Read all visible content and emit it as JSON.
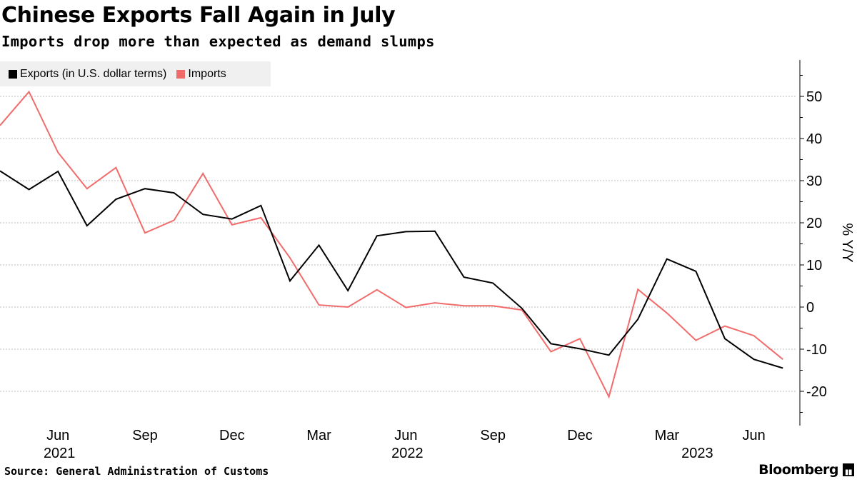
{
  "title": "Chinese Exports Fall Again in July",
  "subtitle": "Imports drop more than expected as demand slumps",
  "source": "Source: General Administration of Customs",
  "brand": "Bloomberg",
  "brand_icon": "bloomberg-terminal-icon",
  "colors": {
    "exports": "#000000",
    "imports": "#f26b6b",
    "grid": "#bdbdbd",
    "legend_bg": "#f0f0f0"
  },
  "chart_data": {
    "type": "line",
    "ylabel": "% Y/Y",
    "ylim": [
      -27,
      58
    ],
    "yticks": [
      50,
      40,
      30,
      20,
      10,
      0,
      -10,
      -20
    ],
    "grid": "horizontal dashed",
    "legend_placement": "top-left",
    "x": [
      "2021-04",
      "2021-05",
      "2021-06",
      "2021-07",
      "2021-08",
      "2021-09",
      "2021-10",
      "2021-11",
      "2021-12",
      "2022-01",
      "2022-02",
      "2022-03",
      "2022-04",
      "2022-05",
      "2022-06",
      "2022-07",
      "2022-08",
      "2022-09",
      "2022-10",
      "2022-11",
      "2022-12",
      "2023-01",
      "2023-02",
      "2023-03",
      "2023-04",
      "2023-05",
      "2023-06",
      "2023-07"
    ],
    "x_month_ticks": [
      "Jun",
      "Sep",
      "Dec",
      "Mar",
      "Jun",
      "Sep",
      "Dec",
      "Mar",
      "Jun"
    ],
    "x_year_labels": [
      "2021",
      "2022",
      "2023"
    ],
    "series": [
      {
        "name": "Exports (in U.S. dollar terms)",
        "values": [
          32.3,
          27.9,
          32.2,
          19.3,
          25.6,
          28.1,
          27.1,
          22.0,
          20.9,
          24.1,
          6.2,
          14.7,
          3.9,
          16.9,
          17.9,
          18.0,
          7.1,
          5.7,
          -0.3,
          -8.7,
          -9.9,
          -11.4,
          -2.9,
          11.4,
          8.5,
          -7.5,
          -12.4,
          -14.5
        ]
      },
      {
        "name": "Imports",
        "values": [
          43.1,
          51.1,
          36.7,
          28.1,
          33.1,
          17.6,
          20.6,
          31.7,
          19.5,
          21.2,
          11.7,
          0.5,
          0.0,
          4.1,
          -0.1,
          1.0,
          0.3,
          0.3,
          -0.7,
          -10.6,
          -7.5,
          -21.3,
          4.2,
          -1.4,
          -7.9,
          -4.5,
          -6.8,
          -12.4
        ]
      }
    ]
  }
}
